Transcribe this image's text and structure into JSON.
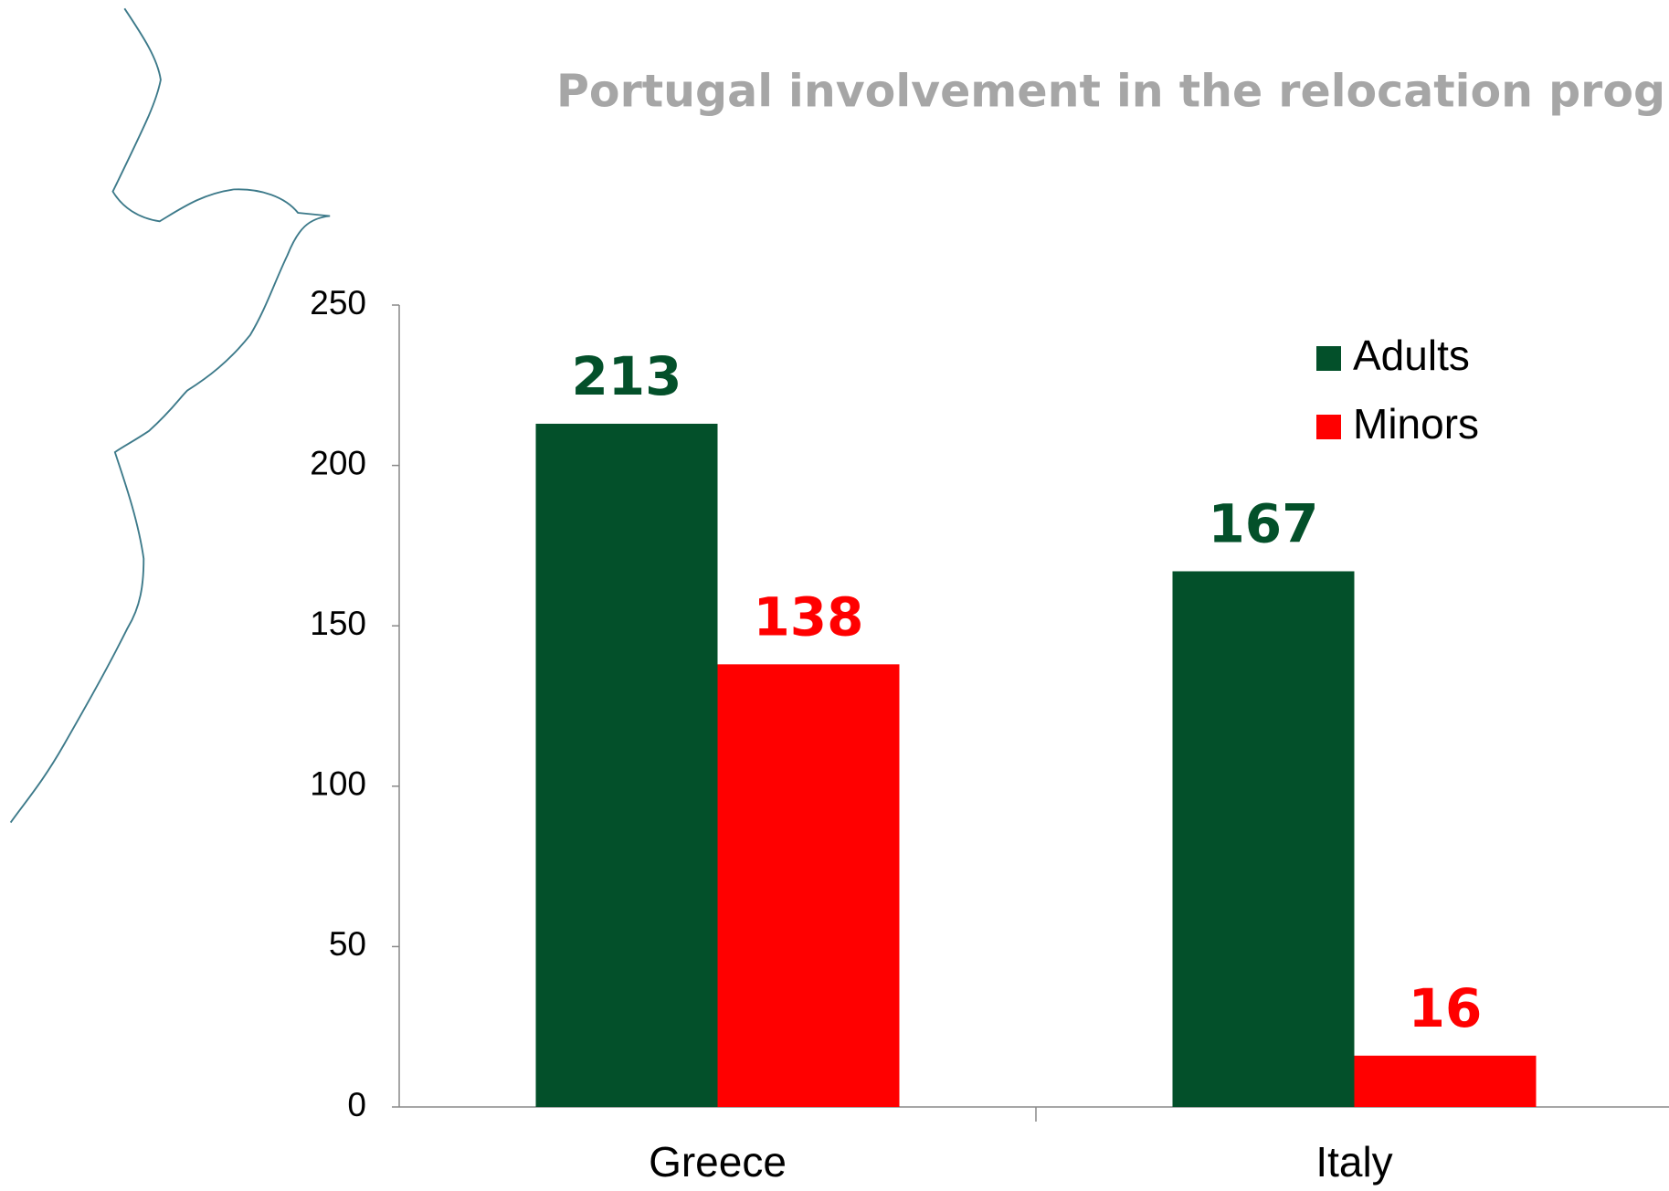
{
  "chart_data": {
    "type": "bar",
    "title": "Portugal involvement in the relocation progr",
    "categories": [
      "Greece",
      "Italy"
    ],
    "series": [
      {
        "name": "Adults",
        "color": "#03502a",
        "values": [
          213,
          167
        ]
      },
      {
        "name": "Minors",
        "color": "#ff0000",
        "values": [
          138,
          16
        ]
      }
    ],
    "ylim": [
      0,
      250
    ],
    "yticks": [
      0,
      50,
      100,
      150,
      200,
      250
    ],
    "legend": "top-right",
    "grid": false
  }
}
